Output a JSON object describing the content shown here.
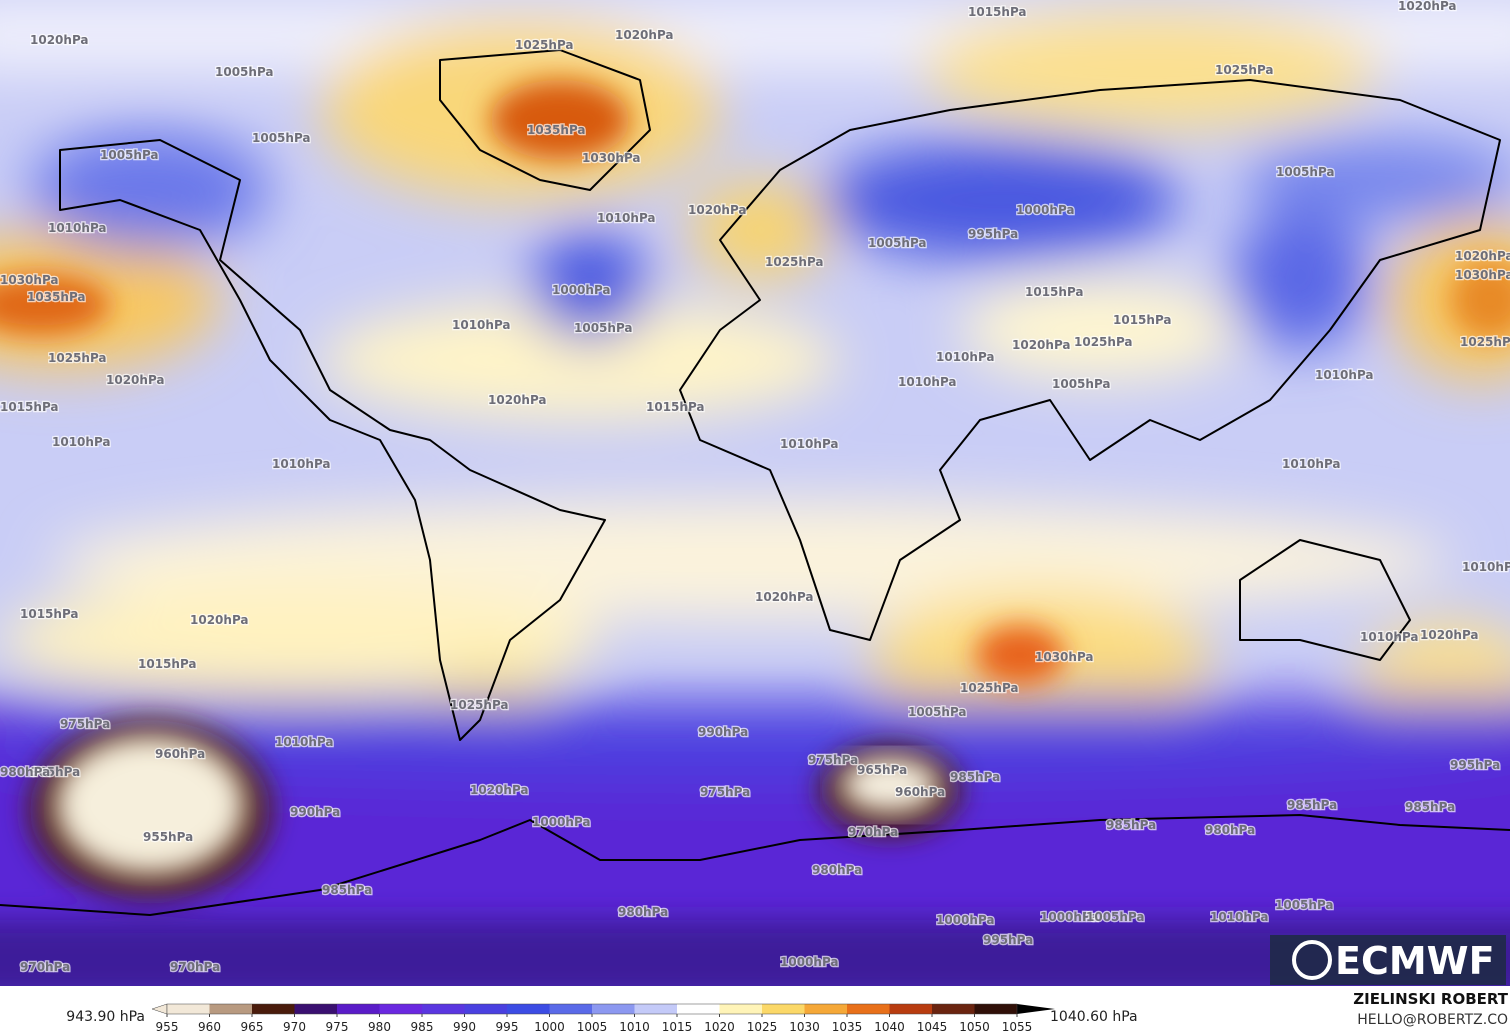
{
  "map": {
    "contour_labels": [
      "1020hPa",
      "1005hPa",
      "1025hPa",
      "1020hPa",
      "1015hPa",
      "1020hPa",
      "1025hPa",
      "1005hPa",
      "1035hPa",
      "1030hPa",
      "1005hPa",
      "1010hPa",
      "1010hPa",
      "1020hPa",
      "1005hPa",
      "1000hPa",
      "995hPa",
      "1005hPa",
      "1025hPa",
      "1030hPa",
      "1035hPa",
      "1020hPa",
      "1030hPa",
      "1000hPa",
      "1005hPa",
      "1010hPa",
      "1015hPa",
      "1015hPa",
      "1025hPa",
      "1020hPa",
      "1010hPa",
      "1025hPa",
      "1025hPa",
      "1020hPa",
      "1010hPa",
      "1005hPa",
      "1015hPa",
      "1020hPa",
      "1015hPa",
      "1010hPa",
      "1010hPa",
      "1010hPa",
      "1010hPa",
      "1010hPa",
      "1010hPa",
      "1020hPa",
      "1015hPa",
      "1020hPa",
      "1030hPa",
      "1025hPa",
      "1010hPa",
      "1020hPa",
      "1015hPa",
      "1010hPa",
      "1025hPa",
      "1005hPa",
      "975hPa",
      "960hPa",
      "965hPa",
      "980hPa",
      "990hPa",
      "975hPa",
      "965hPa",
      "960hPa",
      "985hPa",
      "995hPa",
      "975hPa",
      "990hPa",
      "1020hPa",
      "955hPa",
      "970hPa",
      "1000hPa",
      "985hPa",
      "980hPa",
      "985hPa",
      "985hPa",
      "980hPa",
      "985hPa",
      "980hPa",
      "1000hPa",
      "995hPa",
      "1000hPa",
      "1005hPa",
      "1010hPa",
      "1005hPa",
      "970hPa",
      "970hPa",
      "1000hPa"
    ]
  },
  "colorbar": {
    "min_label": "943.90 hPa",
    "max_label": "1040.60 hPa",
    "ticks": [
      955,
      960,
      965,
      970,
      975,
      980,
      985,
      990,
      995,
      1000,
      1005,
      1010,
      1015,
      1020,
      1025,
      1030,
      1035,
      1040,
      1045,
      1050,
      1055
    ],
    "colors": [
      "#f2e8d8",
      "#b89a80",
      "#4a1c0c",
      "#3a1070",
      "#5a1cc8",
      "#6a28e0",
      "#5a36e0",
      "#4a40e0",
      "#3c4ce4",
      "#5a6ae8",
      "#8c98f0",
      "#c4caf8",
      "#ffffff",
      "#fff4b8",
      "#fbd868",
      "#f5a838",
      "#e8701a",
      "#b83c10",
      "#6a2410",
      "#301008"
    ]
  },
  "attribution": {
    "author": "ZIELINSKI ROBERT",
    "contact": "HELLO@ROBERTZ.CO",
    "logo": "ECMWF"
  }
}
